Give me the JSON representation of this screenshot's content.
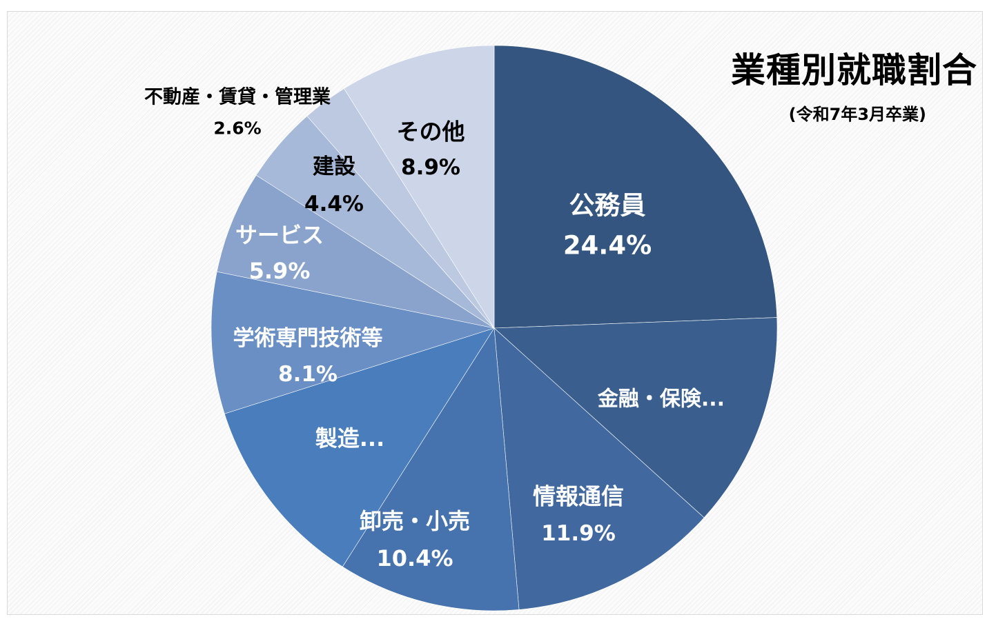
{
  "chart_data": {
    "type": "pie",
    "title": "業種別就職割合",
    "subtitle": "(令和7年3月卒業)",
    "start_angle_deg": 0,
    "direction": "clockwise",
    "slices": [
      {
        "label": "公務員",
        "value": 24.4,
        "value_label": "24.4%",
        "color": "#33557f"
      },
      {
        "label": "金融・保険...",
        "value": 12.3,
        "value_label": "",
        "color": "#3a5f8e"
      },
      {
        "label": "情報通信",
        "value": 11.9,
        "value_label": "11.9%",
        "color": "#4169a0"
      },
      {
        "label": "卸売・小売",
        "value": 10.4,
        "value_label": "10.4%",
        "color": "#4672ad"
      },
      {
        "label": "製造...",
        "value": 11.1,
        "value_label": "",
        "color": "#4a7dbc"
      },
      {
        "label": "学術専門技術等",
        "value": 8.1,
        "value_label": "8.1%",
        "color": "#6a8fc4"
      },
      {
        "label": "サービス",
        "value": 5.9,
        "value_label": "5.9%",
        "color": "#8aa3cc"
      },
      {
        "label": "建設",
        "value": 4.4,
        "value_label": "4.4%",
        "color": "#a7b9d8"
      },
      {
        "label": "不動産・賃貸・管理業",
        "value": 2.6,
        "value_label": "2.6%",
        "color": "#bcc9e1"
      },
      {
        "label": "その他",
        "value": 8.9,
        "value_label": "8.9%",
        "color": "#cdd6e8"
      }
    ]
  }
}
